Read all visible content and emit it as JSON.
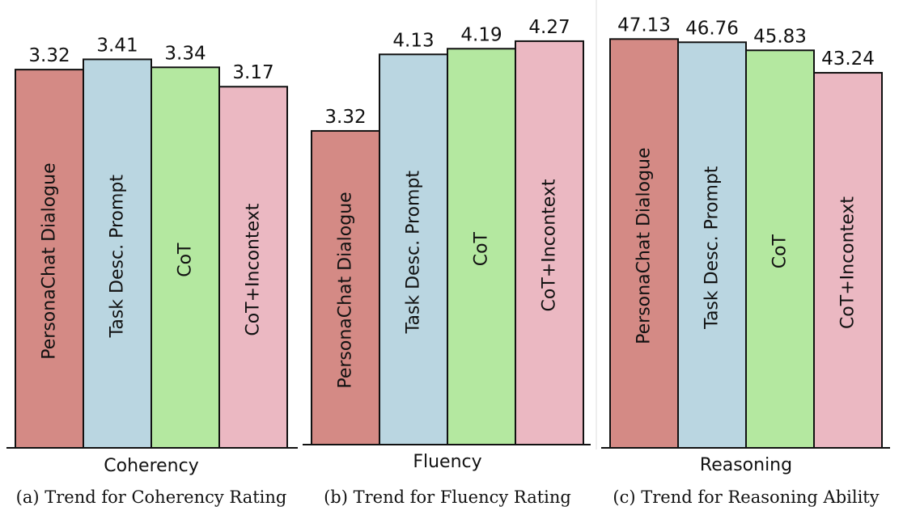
{
  "chart_data": [
    {
      "type": "bar",
      "xlabel": "Coherency",
      "caption": "(a) Trend for Coherency Rating",
      "categories": [
        "PersonaChat Dialogue",
        "Task Desc. Prompt",
        "CoT",
        "CoT+Incontext"
      ],
      "values": [
        3.32,
        3.41,
        3.34,
        3.17
      ],
      "value_labels": [
        "3.32",
        "3.41",
        "3.34",
        "3.17"
      ],
      "colors": [
        "#d48a85",
        "#bad6e1",
        "#b4e8a0",
        "#ebb8c2"
      ],
      "ylim": [
        0,
        3.86
      ],
      "grid": false,
      "legend": "none"
    },
    {
      "type": "bar",
      "xlabel": "Fluency",
      "caption": "(b) Trend for Fluency Rating",
      "categories": [
        "PersonaChat Dialogue",
        "Task Desc. Prompt",
        "CoT",
        "CoT+Incontext"
      ],
      "values": [
        3.32,
        4.13,
        4.19,
        4.27
      ],
      "value_labels": [
        "3.32",
        "4.13",
        "4.19",
        "4.27"
      ],
      "colors": [
        "#d48a85",
        "#bad6e1",
        "#b4e8a0",
        "#ebb8c2"
      ],
      "ylim": [
        0,
        4.62
      ],
      "grid": false,
      "legend": "none"
    },
    {
      "type": "bar",
      "xlabel": "Reasoning",
      "caption": "(c) Trend for Reasoning Ability",
      "categories": [
        "PersonaChat Dialogue",
        "Task Desc. Prompt",
        "CoT",
        "CoT+Incontext"
      ],
      "values": [
        47.13,
        46.76,
        45.83,
        43.24
      ],
      "value_labels": [
        "47.13",
        "46.76",
        "45.83",
        "43.24"
      ],
      "colors": [
        "#d48a85",
        "#bad6e1",
        "#b4e8a0",
        "#ebb8c2"
      ],
      "ylim": [
        0,
        50.7
      ],
      "grid": false,
      "legend": "none"
    }
  ]
}
